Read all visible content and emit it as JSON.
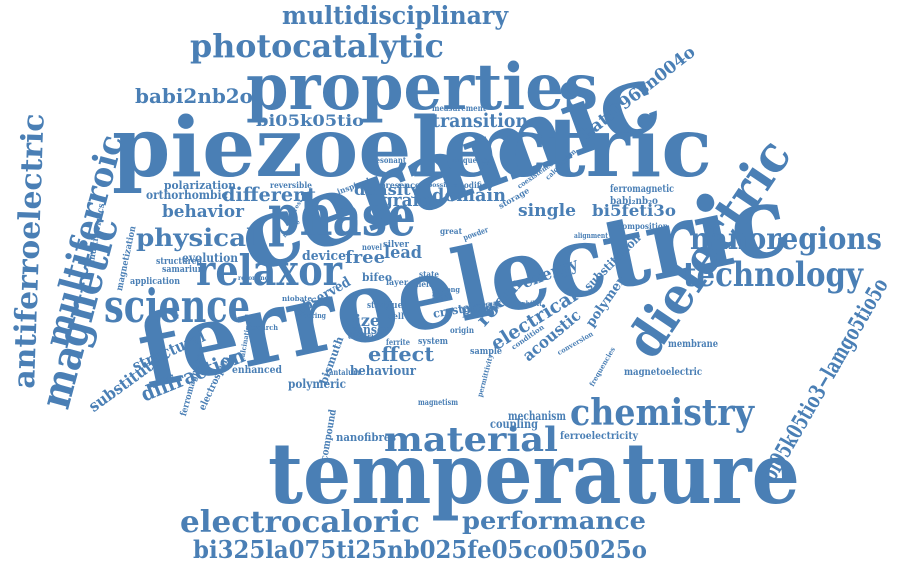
{
  "colors": {
    "word": "#4a7fb5",
    "background": "#ffffff"
  },
  "words": [
    {
      "id": "ferroelectric",
      "text": "ferroelectric"
    },
    {
      "id": "temperature",
      "text": "temperature"
    },
    {
      "id": "ceramic",
      "text": "ceramic"
    },
    {
      "id": "piezoelectric",
      "text": "piezoelectric"
    },
    {
      "id": "properties",
      "text": "properties"
    },
    {
      "id": "dielectric",
      "text": "dielectric"
    },
    {
      "id": "phase",
      "text": "phase"
    },
    {
      "id": "relaxor",
      "text": "relaxor"
    },
    {
      "id": "science",
      "text": "science"
    },
    {
      "id": "technology",
      "text": "technology"
    },
    {
      "id": "nanoregions",
      "text": "nanoregions"
    },
    {
      "id": "chemistry",
      "text": "chemistry"
    },
    {
      "id": "material",
      "text": "material"
    },
    {
      "id": "electrocaloric",
      "text": "electrocaloric"
    },
    {
      "id": "performance",
      "text": "performance"
    },
    {
      "id": "bi325la",
      "text": "bi325la075ti25nb025fe05co05025o"
    },
    {
      "id": "photocatalytic",
      "text": "photocatalytic"
    },
    {
      "id": "multidisciplinary",
      "text": "multidisciplinary"
    },
    {
      "id": "magnetic",
      "text": "magnetic"
    },
    {
      "id": "multiferroic",
      "text": "multiferroic"
    },
    {
      "id": "antiferroelectric",
      "text": "antiferroelectric"
    },
    {
      "id": "babi2nb2o",
      "text": "babi2nb2o"
    },
    {
      "id": "bi05k05tio",
      "text": "bi05k05tio"
    },
    {
      "id": "transition",
      "text": "transition"
    },
    {
      "id": "bati096sn004o",
      "text": "bati096sn004o"
    },
    {
      "id": "bi05k05tio3",
      "text": "bi05k05tio3−lamgo5tio5o"
    },
    {
      "id": "physical",
      "text": "physical"
    },
    {
      "id": "behavior",
      "text": "behavior"
    },
    {
      "id": "different",
      "text": "different"
    },
    {
      "id": "density",
      "text": "density"
    },
    {
      "id": "grain",
      "text": "grain"
    },
    {
      "id": "domain",
      "text": "domain"
    },
    {
      "id": "single",
      "text": "single"
    },
    {
      "id": "bi5feti3o",
      "text": "bi5feti3o"
    },
    {
      "id": "orthorhombic",
      "text": "orthorhombic"
    },
    {
      "id": "polarization",
      "text": "polarization"
    },
    {
      "id": "free",
      "text": "free"
    },
    {
      "id": "lead",
      "text": "lead"
    },
    {
      "id": "room",
      "text": "room"
    },
    {
      "id": "electrical",
      "text": "electrical"
    },
    {
      "id": "energy",
      "text": "energy"
    },
    {
      "id": "acoustic",
      "text": "acoustic"
    },
    {
      "id": "polar",
      "text": "polar"
    },
    {
      "id": "effect",
      "text": "effect"
    },
    {
      "id": "size",
      "text": "size"
    },
    {
      "id": "behaviour",
      "text": "behaviour"
    },
    {
      "id": "diffraction",
      "text": "diffraction"
    },
    {
      "id": "structural",
      "text": "structural"
    },
    {
      "id": "substituted",
      "text": "substituted"
    },
    {
      "id": "observed",
      "text": "observed"
    },
    {
      "id": "device",
      "text": "device"
    },
    {
      "id": "evolution",
      "text": "evolution"
    },
    {
      "id": "bismuth",
      "text": "bismuth"
    },
    {
      "id": "sensor",
      "text": "sensor"
    },
    {
      "id": "crystal",
      "text": "crystal"
    },
    {
      "id": "polymer",
      "text": "polymer"
    },
    {
      "id": "substitution",
      "text": "substitution"
    },
    {
      "id": "ferromagnetic",
      "text": "ferromagnetic"
    },
    {
      "id": "babi2nb2o_small",
      "text": "babi₂nb₂o"
    },
    {
      "id": "magnetoelectric",
      "text": "magnetoelectric"
    },
    {
      "id": "membrane",
      "text": "membrane"
    },
    {
      "id": "mechanism",
      "text": "mechanism"
    },
    {
      "id": "coupling",
      "text": "coupling"
    },
    {
      "id": "ferroelectricity",
      "text": "ferroelectricity"
    },
    {
      "id": "nanofibres",
      "text": "nanofibres"
    },
    {
      "id": "polymeric",
      "text": "polymeric"
    },
    {
      "id": "enhanced",
      "text": "enhanced"
    },
    {
      "id": "compound",
      "text": "compound"
    },
    {
      "id": "electrospun",
      "text": "electrospun"
    },
    {
      "id": "ferromagnetism",
      "text": "ferromagnetism"
    },
    {
      "id": "magnetization",
      "text": "magnetization"
    },
    {
      "id": "multiferroics",
      "text": "multiferroics"
    },
    {
      "id": "structured",
      "text": "structured"
    },
    {
      "id": "samarium",
      "text": "samarium"
    },
    {
      "id": "application",
      "text": "application"
    },
    {
      "id": "reversible",
      "text": "reversible"
    },
    {
      "id": "inspired",
      "text": "inspired"
    },
    {
      "id": "presence",
      "text": "presence"
    },
    {
      "id": "modified",
      "text": "modified"
    },
    {
      "id": "storage",
      "text": "storage"
    },
    {
      "id": "resonant",
      "text": "resonant"
    },
    {
      "id": "frequency",
      "text": "frequency"
    },
    {
      "id": "measurement",
      "text": "measurement"
    },
    {
      "id": "calculation",
      "text": "calculation"
    },
    {
      "id": "coexistence",
      "text": "coexistence"
    },
    {
      "id": "composition",
      "text": "composition"
    },
    {
      "id": "alignment",
      "text": "alignment"
    },
    {
      "id": "great",
      "text": "great"
    },
    {
      "id": "powder",
      "text": "powder"
    },
    {
      "id": "silver",
      "text": "silver"
    },
    {
      "id": "novel",
      "text": "novel"
    },
    {
      "id": "bifeo",
      "text": "bifeo"
    },
    {
      "id": "layer",
      "text": "layer"
    },
    {
      "id": "state",
      "text": "state"
    },
    {
      "id": "field",
      "text": "field"
    },
    {
      "id": "fuel",
      "text": "fuel"
    },
    {
      "id": "cell",
      "text": "cell"
    },
    {
      "id": "study",
      "text": "study"
    },
    {
      "id": "system",
      "text": "system"
    },
    {
      "id": "origin",
      "text": "origin"
    },
    {
      "id": "result",
      "text": "result"
    },
    {
      "id": "condition",
      "text": "condition"
    },
    {
      "id": "sample",
      "text": "sample"
    },
    {
      "id": "conversion",
      "text": "conversion"
    },
    {
      "id": "frequencies",
      "text": "frequencies"
    },
    {
      "id": "permittivity",
      "text": "permittivity"
    },
    {
      "id": "magnetism",
      "text": "magnetism"
    },
    {
      "id": "electric",
      "text": "electric"
    },
    {
      "id": "ferrite",
      "text": "ferrite"
    },
    {
      "id": "tantalum",
      "text": "tantalum"
    },
    {
      "id": "niobate",
      "text": "niobate"
    },
    {
      "id": "ordering",
      "text": "ordering"
    },
    {
      "id": "research",
      "text": "research"
    },
    {
      "id": "calcination",
      "text": "calcination"
    },
    {
      "id": "exhibit",
      "text": "exhibit"
    },
    {
      "id": "strong",
      "text": "strong"
    },
    {
      "id": "type",
      "text": "type"
    },
    {
      "id": "based",
      "text": "based"
    },
    {
      "id": "possible",
      "text": "possible"
    },
    {
      "id": "resonance",
      "text": "resonance"
    },
    {
      "id": "nature",
      "text": "nature"
    },
    {
      "id": "interest",
      "text": "interest"
    }
  ]
}
